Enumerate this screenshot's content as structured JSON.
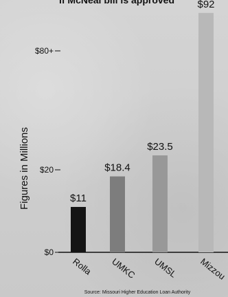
{
  "chart_data": {
    "type": "bar",
    "title": "if McNeal bill is approved",
    "ylabel": "Figures in Millions",
    "xlabel": "",
    "categories": [
      "Rolla",
      "UMKC",
      "UMSL",
      "Mizzou"
    ],
    "values": [
      11,
      18.4,
      23.5,
      92
    ],
    "value_labels": [
      "$11",
      "$18.4",
      "$23.5",
      "$92"
    ],
    "y_ticks": [
      {
        "value": 0,
        "label": "$0"
      },
      {
        "value": 20,
        "label": "$20"
      },
      {
        "value": 80,
        "label": "$80+"
      }
    ],
    "axis_break": {
      "from": 35,
      "to": 75
    },
    "ylim": [
      0,
      95
    ],
    "source": "Source: Missouri Higher Education Loan Authority",
    "bar_colors": [
      "#141414",
      "#7d7d7d",
      "#989898",
      "#b8b8b8"
    ],
    "grid": false,
    "legend": "none"
  }
}
